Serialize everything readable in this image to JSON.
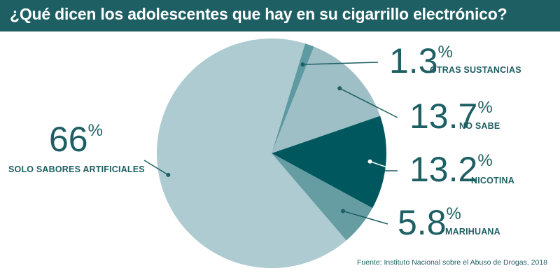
{
  "title": "¿Qué dicen los adolescentes que hay en su cigarrillo electrónico?",
  "source": "Fuente: Instituto Nacional sobre el Abuso de Drogas, 2018",
  "colors": {
    "header": "#1e5f63",
    "text": "#1e5f63",
    "leader": "#1e5f63"
  },
  "chart_data": {
    "type": "pie",
    "title": "¿Qué dicen los adolescentes que hay en su cigarrillo electrónico?",
    "slices": [
      {
        "label": "OTRAS SUSTANCIAS",
        "value": 1.3,
        "display": "1.3",
        "color": "#5e9aa1"
      },
      {
        "label": "NO SABE",
        "value": 13.7,
        "display": "13.7",
        "color": "#9ebfc5"
      },
      {
        "label": "NICOTINA",
        "value": 13.2,
        "display": "13.2",
        "color": "#00585e"
      },
      {
        "label": "MARIHUANA",
        "value": 5.8,
        "display": "5.8",
        "color": "#659da3"
      },
      {
        "label": "SOLO SABORES ARTIFICIALES",
        "value": 66,
        "display": "66",
        "color": "#adcbd0"
      }
    ],
    "unit": "%"
  }
}
